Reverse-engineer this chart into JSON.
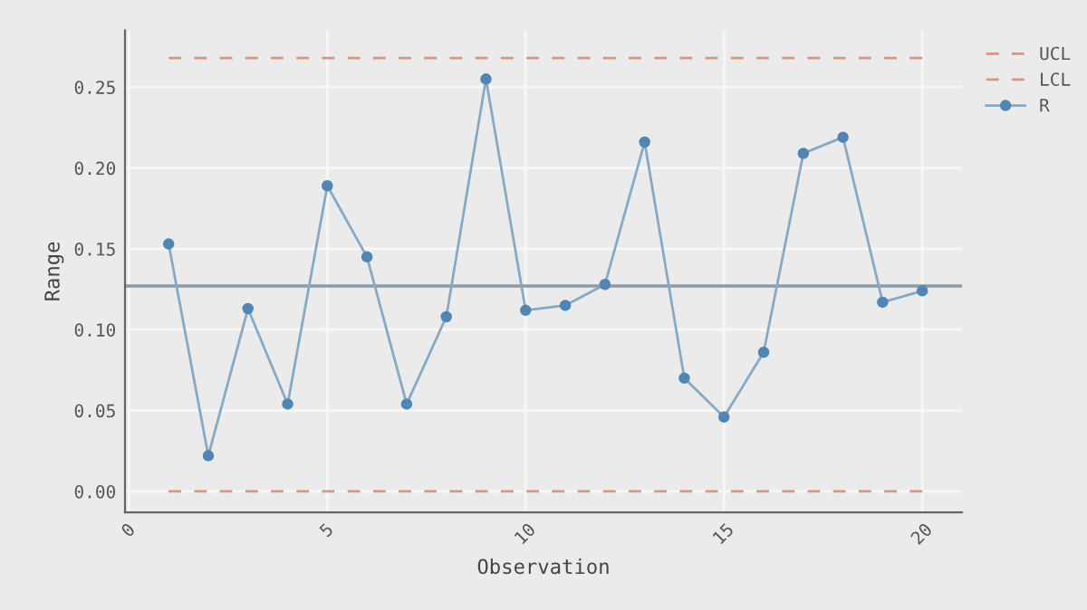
{
  "chart_data": {
    "type": "line",
    "xlabel": "Observation",
    "ylabel": "Range",
    "xlim": [
      -0.1,
      21
    ],
    "xticks": [
      0,
      5,
      10,
      15,
      20
    ],
    "ylim": [
      -0.013,
      0.285
    ],
    "yticks": [
      {
        "value": 0,
        "label": "0.00"
      },
      {
        "value": 0.05,
        "label": "0.05"
      },
      {
        "value": 0.1,
        "label": "0.10"
      },
      {
        "value": 0.15,
        "label": "0.15"
      },
      {
        "value": 0.2,
        "label": "0.20"
      },
      {
        "value": 0.25,
        "label": "0.25"
      }
    ],
    "grid": true,
    "legend": "top right",
    "series": [
      {
        "name": "UCL",
        "line_style": "dashed",
        "marker": "none",
        "color": "#d9967e",
        "x": [
          1,
          20
        ],
        "values": [
          0.268,
          0.268
        ]
      },
      {
        "name": "LCL",
        "line_style": "dashed",
        "marker": "none",
        "color": "#d9967e",
        "x": [
          1,
          20
        ],
        "values": [
          0,
          0
        ]
      },
      {
        "name": "R",
        "line_style": "solid",
        "marker": "circle",
        "color": "#86aac4",
        "x": [
          1,
          2,
          3,
          4,
          5,
          6,
          7,
          8,
          9,
          10,
          11,
          12,
          13,
          14,
          15,
          16,
          17,
          18,
          19,
          20
        ],
        "values": [
          0.153,
          0.022,
          0.113,
          0.054,
          0.189,
          0.145,
          0.054,
          0.108,
          0.255,
          0.112,
          0.115,
          0.128,
          0.216,
          0.07,
          0.046,
          0.086,
          0.209,
          0.219,
          0.117,
          0.124
        ]
      }
    ],
    "ref_lines": [
      {
        "axis": "y",
        "value": 0.127,
        "color": "#8b9ba3",
        "line_style": "solid"
      }
    ]
  }
}
